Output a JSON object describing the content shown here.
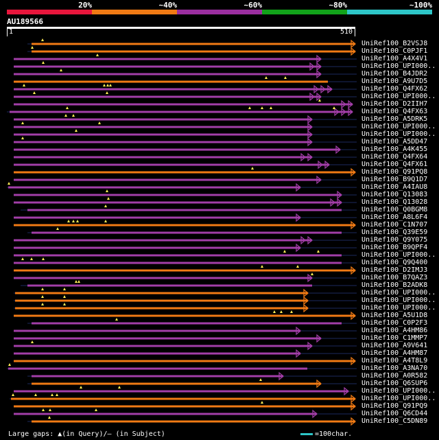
{
  "legend": {
    "labels": [
      "20%",
      "~40%",
      "~60%",
      "~80%",
      "~100%"
    ],
    "colors": [
      "#e8163c",
      "#f07a14",
      "#9b2fa0",
      "#12a21a",
      "#2ec6c8"
    ]
  },
  "query": {
    "id": "AU189566",
    "start": "1",
    "end": "510",
    "length": 510
  },
  "colors": {
    "orange": "#f07a14",
    "purple": "#a23ea8",
    "darkline": "#1c2a5e",
    "marker": "#ffee55"
  },
  "hits": [
    {
      "label": "UniRef100_B2VSJ8",
      "color": "orange",
      "qs": 46,
      "qe": 518,
      "pre": 40,
      "post": 0,
      "arrows": 1,
      "marks": [
        62
      ]
    },
    {
      "label": "UniRef100_C0PJF1",
      "color": "orange",
      "qs": 46,
      "qe": 518,
      "pre": 40,
      "post": 0,
      "arrows": 1,
      "marks": [
        47
      ]
    },
    {
      "label": "UniRef100_A4X4V1",
      "color": "purple",
      "qs": 20,
      "qe": 468,
      "pre": 20,
      "post": 520,
      "arrows": 1,
      "marks": [
        142
      ]
    },
    {
      "label": "UniRef100_UPI000..",
      "color": "purple",
      "qs": 20,
      "qe": 468,
      "pre": 20,
      "post": 520,
      "arrows": 2,
      "marks": [
        63
      ]
    },
    {
      "label": "UniRef100_B4JDR2",
      "color": "purple",
      "qs": 20,
      "qe": 468,
      "pre": 20,
      "post": 520,
      "arrows": 1,
      "marks": [
        89
      ]
    },
    {
      "label": "UniRef100_A9U7D5",
      "color": "orange",
      "qs": 20,
      "qe": 478,
      "pre": 20,
      "post": 520,
      "arrows": 0,
      "marks": [
        388,
        416
      ]
    },
    {
      "label": "UniRef100_Q4FX62",
      "color": "purple",
      "qs": 20,
      "qe": 484,
      "pre": 20,
      "post": 520,
      "arrows": 3,
      "marks": [
        35,
        152,
        157,
        161
      ]
    },
    {
      "label": "UniRef100_UPI000..",
      "color": "purple",
      "qs": 20,
      "qe": 468,
      "pre": 20,
      "post": 520,
      "arrows": 2,
      "marks": [
        50,
        156
      ]
    },
    {
      "label": "UniRef100_D2IIH7",
      "color": "purple",
      "qs": 20,
      "qe": 514,
      "pre": 20,
      "post": 0,
      "arrows": 2,
      "marks": [
        466
      ]
    },
    {
      "label": "UniRef100_Q4FX63",
      "color": "purple",
      "qs": 14,
      "qe": 514,
      "pre": 10,
      "post": 0,
      "arrows": 3,
      "marks": [
        98,
        364,
        382,
        395,
        487
      ]
    },
    {
      "label": "UniRef100_A5DRK5",
      "color": "purple",
      "qs": 20,
      "qe": 455,
      "pre": 20,
      "post": 520,
      "arrows": 1,
      "marks": [
        96,
        107
      ]
    },
    {
      "label": "UniRef100_UPI000..",
      "color": "purple",
      "qs": 20,
      "qe": 455,
      "pre": 20,
      "post": 520,
      "arrows": 1,
      "marks": [
        33,
        145
      ]
    },
    {
      "label": "UniRef100_UPI000..",
      "color": "purple",
      "qs": 20,
      "qe": 455,
      "pre": 20,
      "post": 520,
      "arrows": 1,
      "marks": [
        111
      ]
    },
    {
      "label": "UniRef100_A5DD47",
      "color": "purple",
      "qs": 20,
      "qe": 455,
      "pre": 20,
      "post": 520,
      "arrows": 1,
      "marks": [
        33
      ]
    },
    {
      "label": "UniRef100_A4K455",
      "color": "purple",
      "qs": 20,
      "qe": 496,
      "pre": 20,
      "post": 520,
      "arrows": 1,
      "marks": []
    },
    {
      "label": "UniRef100_Q4FX64",
      "color": "purple",
      "qs": 20,
      "qe": 455,
      "pre": 20,
      "post": 520,
      "arrows": 2,
      "marks": []
    },
    {
      "label": "UniRef100_Q4FX61",
      "color": "purple",
      "qs": 20,
      "qe": 480,
      "pre": 20,
      "post": 520,
      "arrows": 2,
      "marks": []
    },
    {
      "label": "UniRef100_Q91PQ8",
      "color": "orange",
      "qs": 20,
      "qe": 518,
      "pre": 20,
      "post": 0,
      "arrows": 1,
      "marks": [
        368
      ]
    },
    {
      "label": "UniRef100_B9Q1D7",
      "color": "purple",
      "qs": 20,
      "qe": 468,
      "pre": 20,
      "post": 520,
      "arrows": 1,
      "marks": []
    },
    {
      "label": "UniRef100_A4IAU8",
      "color": "purple",
      "qs": 12,
      "qe": 438,
      "pre": 10,
      "post": 520,
      "arrows": 1,
      "marks": [
        13
      ]
    },
    {
      "label": "UniRef100_Q13083",
      "color": "purple",
      "qs": 20,
      "qe": 498,
      "pre": 20,
      "post": 520,
      "arrows": 1,
      "marks": [
        156
      ]
    },
    {
      "label": "UniRef100_Q13028",
      "color": "purple",
      "qs": 20,
      "qe": 498,
      "pre": 20,
      "post": 520,
      "arrows": 2,
      "marks": [
        158
      ]
    },
    {
      "label": "UniRef100_Q0BGM8",
      "color": "purple",
      "qs": 40,
      "qe": 498,
      "pre": 30,
      "post": 520,
      "arrows": 0,
      "marks": [
        154
      ]
    },
    {
      "label": "UniRef100_A8L6F4",
      "color": "purple",
      "qs": 20,
      "qe": 438,
      "pre": 20,
      "post": 520,
      "arrows": 1,
      "marks": []
    },
    {
      "label": "UniRef100_C1N707",
      "color": "orange",
      "qs": 20,
      "qe": 518,
      "pre": 20,
      "post": 0,
      "arrows": 1,
      "marks": [
        100,
        107,
        113,
        154
      ]
    },
    {
      "label": "UniRef100_Q39E59",
      "color": "purple",
      "qs": 46,
      "qe": 498,
      "pre": 40,
      "post": 520,
      "arrows": 0,
      "marks": [
        84
      ]
    },
    {
      "label": "UniRef100_Q9Y075",
      "color": "purple",
      "qs": 20,
      "qe": 455,
      "pre": 20,
      "post": 520,
      "arrows": 2,
      "marks": []
    },
    {
      "label": "UniRef100_B9QPF4",
      "color": "purple",
      "qs": 20,
      "qe": 438,
      "pre": 20,
      "post": 520,
      "arrows": 1,
      "marks": []
    },
    {
      "label": "UniRef100_UPI000..",
      "color": "purple",
      "qs": 20,
      "qe": 498,
      "pre": 20,
      "post": 520,
      "arrows": 0,
      "marks": [
        415,
        464
      ]
    },
    {
      "label": "UniRef100_Q9Q400",
      "color": "purple",
      "qs": 20,
      "qe": 498,
      "pre": 20,
      "post": 520,
      "arrows": 0,
      "marks": [
        33,
        46,
        63
      ]
    },
    {
      "label": "UniRef100_D2IMJ3",
      "color": "orange",
      "qs": 20,
      "qe": 518,
      "pre": 20,
      "post": 0,
      "arrows": 1,
      "marks": [
        382,
        434
      ]
    },
    {
      "label": "UniRef100_B7QAZ3",
      "color": "purple",
      "qs": 20,
      "qe": 455,
      "pre": 20,
      "post": 520,
      "arrows": 1,
      "marks": [
        455
      ]
    },
    {
      "label": "UniRef100_B2ADK8",
      "color": "purple",
      "qs": 40,
      "qe": 455,
      "pre": 30,
      "post": 520,
      "arrows": 0,
      "marks": [
        111,
        115
      ]
    },
    {
      "label": "UniRef100_UPI000..",
      "color": "orange",
      "qs": 22,
      "qe": 449,
      "pre": 20,
      "post": 520,
      "arrows": 1,
      "marks": [
        62,
        94
      ]
    },
    {
      "label": "UniRef100_UPI000..",
      "color": "orange",
      "qs": 22,
      "qe": 449,
      "pre": 20,
      "post": 520,
      "arrows": 1,
      "marks": [
        62,
        94
      ]
    },
    {
      "label": "UniRef100_UPI000..",
      "color": "orange",
      "qs": 22,
      "qe": 449,
      "pre": 20,
      "post": 520,
      "arrows": 1,
      "marks": [
        62,
        94
      ]
    },
    {
      "label": "UniRef100_A5U1D8",
      "color": "orange",
      "qs": 20,
      "qe": 518,
      "pre": 20,
      "post": 0,
      "arrows": 1,
      "marks": [
        400,
        410,
        425
      ]
    },
    {
      "label": "UniRef100_C0P2F3",
      "color": "purple",
      "qs": 46,
      "qe": 498,
      "pre": 40,
      "post": 520,
      "arrows": 0,
      "marks": [
        170
      ]
    },
    {
      "label": "UniRef100_A4HM86",
      "color": "purple",
      "qs": 20,
      "qe": 438,
      "pre": 20,
      "post": 520,
      "arrows": 1,
      "marks": []
    },
    {
      "label": "UniRef100_C1MMP7",
      "color": "purple",
      "qs": 20,
      "qe": 468,
      "pre": 20,
      "post": 520,
      "arrows": 1,
      "marks": []
    },
    {
      "label": "UniRef100_A9V641",
      "color": "purple",
      "qs": 20,
      "qe": 455,
      "pre": 20,
      "post": 520,
      "arrows": 1,
      "marks": [
        47
      ]
    },
    {
      "label": "UniRef100_A4HM87",
      "color": "purple",
      "qs": 20,
      "qe": 438,
      "pre": 20,
      "post": 520,
      "arrows": 1,
      "marks": []
    },
    {
      "label": "UniRef100_A4T8L9",
      "color": "orange",
      "qs": 20,
      "qe": 518,
      "pre": 20,
      "post": 0,
      "arrows": 1,
      "marks": []
    },
    {
      "label": "UniRef100_A3NA70",
      "color": "purple",
      "qs": 12,
      "qe": 448,
      "pre": 10,
      "post": 520,
      "arrows": 0,
      "marks": [
        14
      ]
    },
    {
      "label": "UniRef100_A0R582",
      "color": "purple",
      "qs": 46,
      "qe": 413,
      "pre": 40,
      "post": 520,
      "arrows": 1,
      "marks": []
    },
    {
      "label": "UniRef100_Q6SUP6",
      "color": "orange",
      "qs": 46,
      "qe": 468,
      "pre": 40,
      "post": 520,
      "arrows": 1,
      "marks": [
        380
      ]
    },
    {
      "label": "UniRef100_UPI000..",
      "color": "purple",
      "qs": 20,
      "qe": 508,
      "pre": 20,
      "post": 520,
      "arrows": 1,
      "marks": [
        118,
        174
      ]
    },
    {
      "label": "UniRef100_UPI000..",
      "color": "orange",
      "qs": 16,
      "qe": 518,
      "pre": 14,
      "post": 0,
      "arrows": 1,
      "marks": [
        19,
        52,
        76,
        83
      ]
    },
    {
      "label": "UniRef100_Q91PQ9",
      "color": "orange",
      "qs": 20,
      "qe": 518,
      "pre": 20,
      "post": 0,
      "arrows": 1,
      "marks": [
        382
      ]
    },
    {
      "label": "UniRef100_Q6CD44",
      "color": "purple",
      "qs": 20,
      "qe": 462,
      "pre": 20,
      "post": 520,
      "arrows": 1,
      "marks": [
        63,
        73,
        140
      ]
    },
    {
      "label": "UniRef100_C5DN89",
      "color": "orange",
      "qs": 46,
      "qe": 518,
      "pre": 40,
      "post": 0,
      "arrows": 1,
      "marks": [
        72
      ]
    }
  ],
  "footer": {
    "text": "Large gaps: ▲(in Query)/– (in Subject)",
    "scale_text": "=100char."
  }
}
